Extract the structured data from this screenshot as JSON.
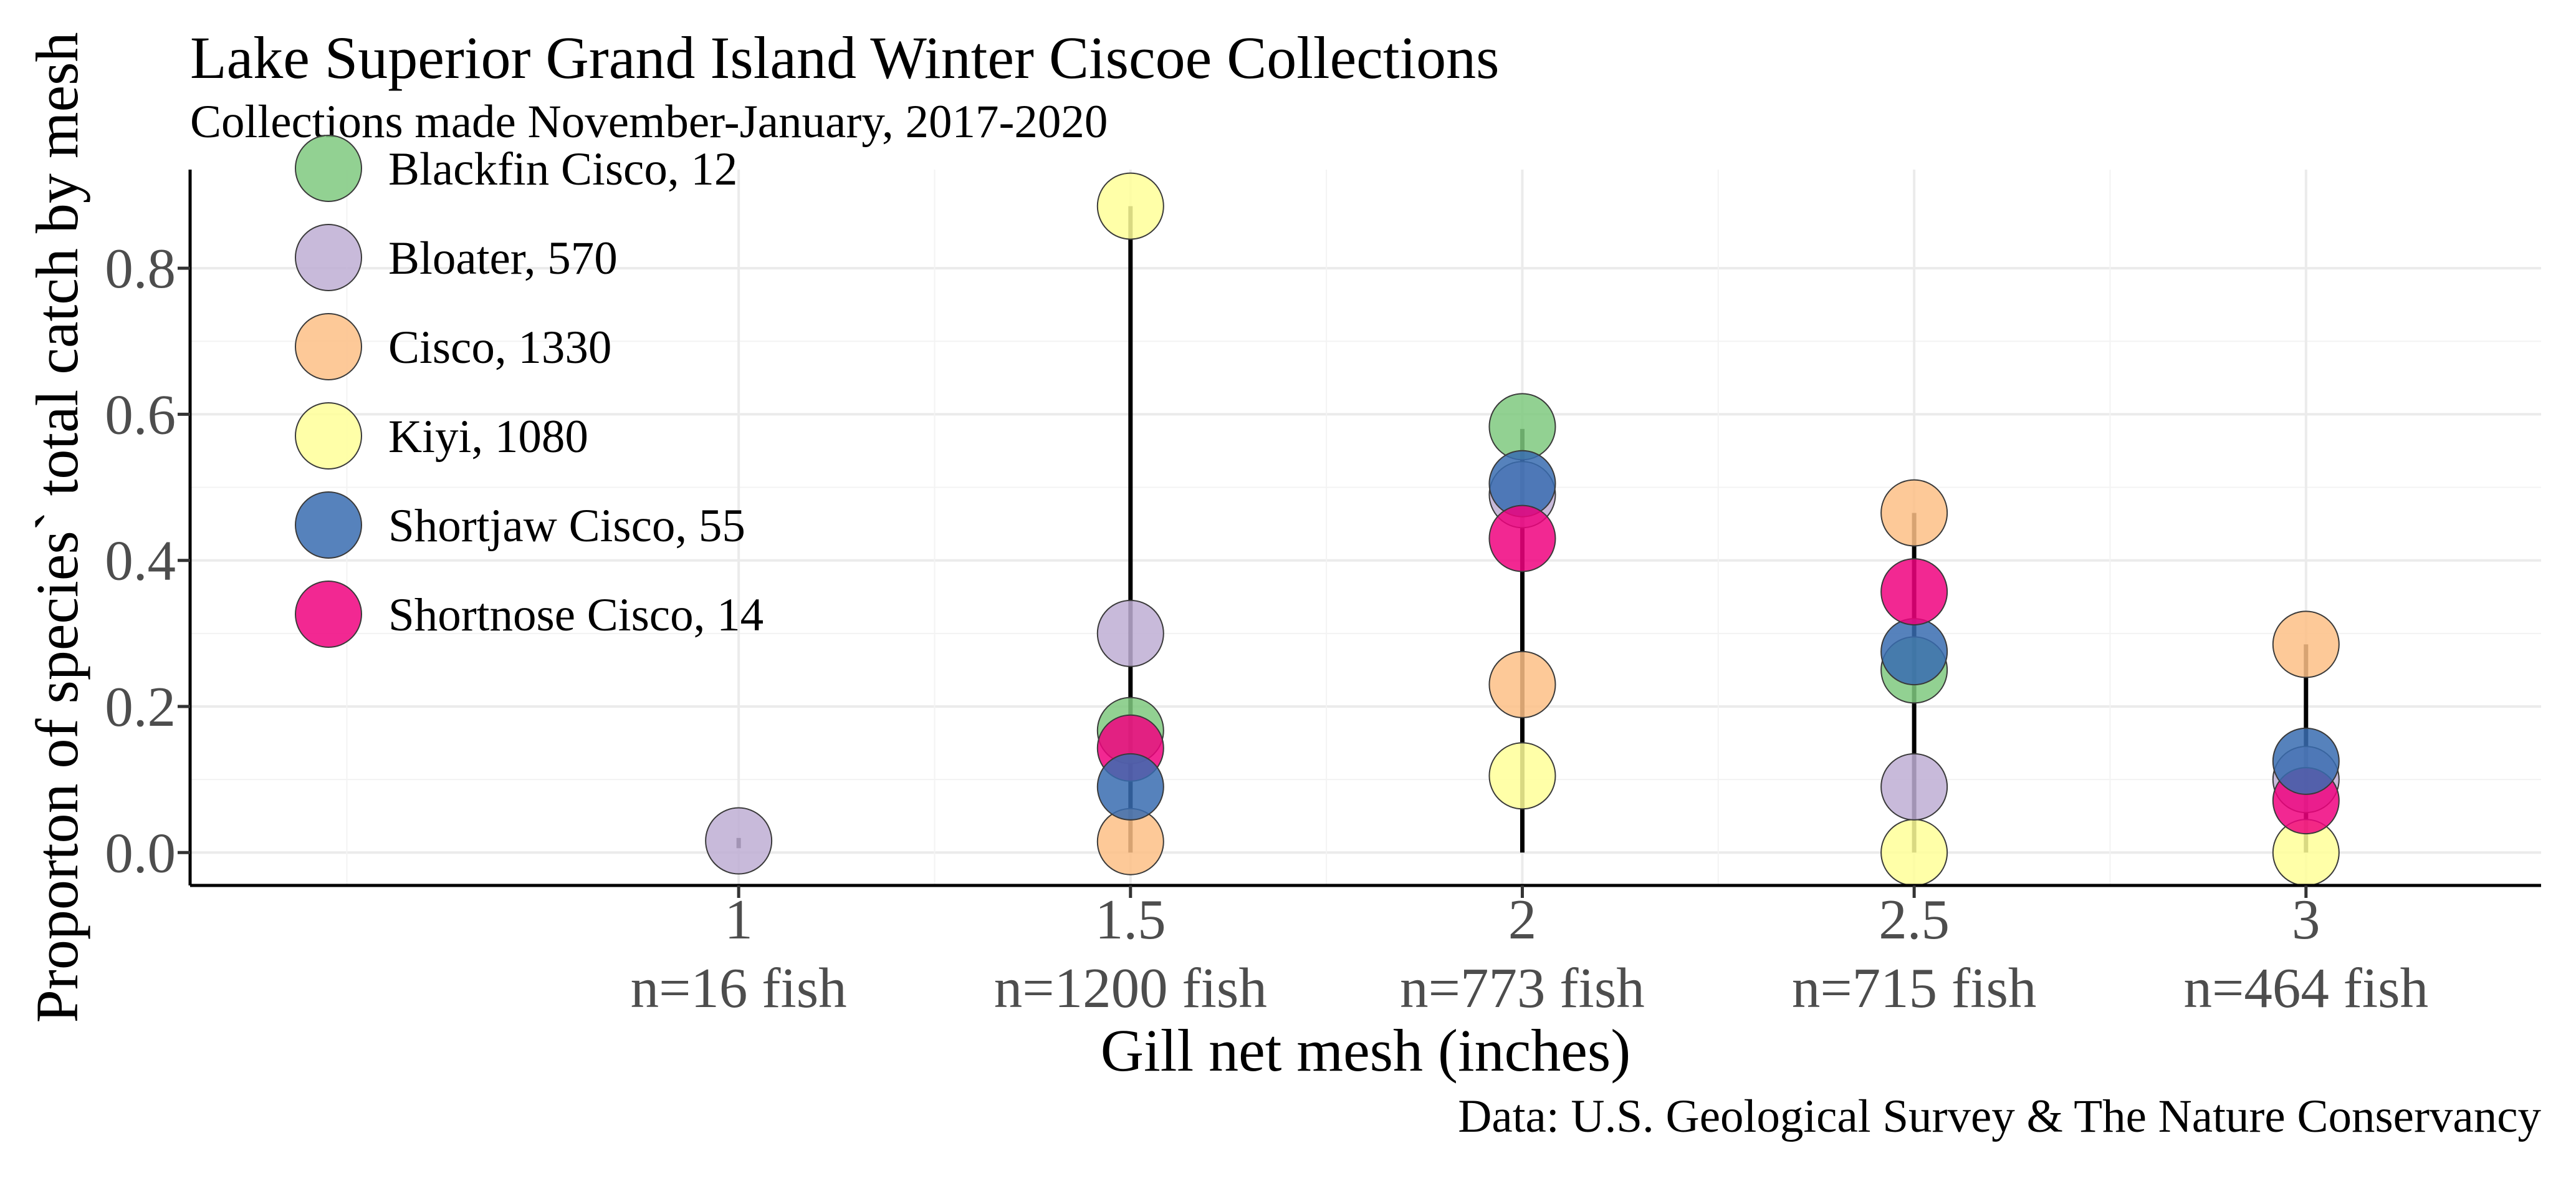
{
  "chart_data": {
    "type": "scatter",
    "title": "Lake Superior Grand Island Winter Ciscoe Collections",
    "subtitle": "Collections made November-January, 2017-2020",
    "caption": "Data: U.S. Geological Survey & The Nature Conservancy",
    "xlabel": "Gill net mesh (inches)",
    "ylabel": "Proporton of species` total catch by mesh",
    "x_ticks": [
      {
        "value": 1,
        "label": "1",
        "sublabel": "n=16 fish"
      },
      {
        "value": 1.5,
        "label": "1.5",
        "sublabel": "n=1200 fish"
      },
      {
        "value": 2,
        "label": "2",
        "sublabel": "n=773 fish"
      },
      {
        "value": 2.5,
        "label": "2.5",
        "sublabel": "n=715 fish"
      },
      {
        "value": 3,
        "label": "3",
        "sublabel": "n=464 fish"
      }
    ],
    "y_ticks": [
      {
        "value": 0.0,
        "label": "0.0"
      },
      {
        "value": 0.2,
        "label": "0.2"
      },
      {
        "value": 0.4,
        "label": "0.4"
      },
      {
        "value": 0.6,
        "label": "0.6"
      },
      {
        "value": 0.8,
        "label": "0.8"
      }
    ],
    "xlim": [
      0.3,
      3.3
    ],
    "ylim": [
      -0.045,
      0.935
    ],
    "grid": true,
    "legend_position": "top-left",
    "range_lines": [
      {
        "x": 1,
        "ymin": 0.006,
        "ymax": 0.02
      },
      {
        "x": 1.5,
        "ymin": 0.0,
        "ymax": 0.885
      },
      {
        "x": 2,
        "ymin": 0.0,
        "ymax": 0.58
      },
      {
        "x": 2.5,
        "ymin": 0.0,
        "ymax": 0.465
      },
      {
        "x": 3,
        "ymin": 0.0,
        "ymax": 0.285
      }
    ],
    "series": [
      {
        "name": "Blackfin Cisco, 12",
        "color": "#7fc97f",
        "points": [
          {
            "x": 2,
            "y": 0.583
          },
          {
            "x": 1.5,
            "y": 0.167
          },
          {
            "x": 2.5,
            "y": 0.25
          }
        ]
      },
      {
        "name": "Bloater, 570",
        "color": "#beaed4",
        "points": [
          {
            "x": 1,
            "y": 0.016
          },
          {
            "x": 1.5,
            "y": 0.3
          },
          {
            "x": 2,
            "y": 0.49
          },
          {
            "x": 2.5,
            "y": 0.09
          },
          {
            "x": 3,
            "y": 0.1
          }
        ]
      },
      {
        "name": "Cisco, 1330",
        "color": "#fdc086",
        "points": [
          {
            "x": 1.5,
            "y": 0.015
          },
          {
            "x": 2,
            "y": 0.23
          },
          {
            "x": 2.5,
            "y": 0.465
          },
          {
            "x": 3,
            "y": 0.285
          }
        ]
      },
      {
        "name": "Kiyi, 1080",
        "color": "#ffff99",
        "points": [
          {
            "x": 1.5,
            "y": 0.885
          },
          {
            "x": 2,
            "y": 0.105
          },
          {
            "x": 2.5,
            "y": 0.0
          },
          {
            "x": 3,
            "y": 0.0
          }
        ]
      },
      {
        "name": "Shortjaw Cisco, 55",
        "color": "#386cb0",
        "points": [
          {
            "x": 1.5,
            "y": 0.09
          },
          {
            "x": 2,
            "y": 0.505
          },
          {
            "x": 2.5,
            "y": 0.275
          },
          {
            "x": 3,
            "y": 0.125
          }
        ]
      },
      {
        "name": "Shortnose Cisco, 14",
        "color": "#f0027f",
        "points": [
          {
            "x": 1.5,
            "y": 0.143
          },
          {
            "x": 2,
            "y": 0.43
          },
          {
            "x": 2.5,
            "y": 0.357
          },
          {
            "x": 3,
            "y": 0.071
          }
        ]
      }
    ],
    "draw_order": [
      {
        "series": 2,
        "point": 0
      },
      {
        "series": 3,
        "point": 0
      },
      {
        "series": 1,
        "point": 0
      },
      {
        "series": 1,
        "point": 1
      },
      {
        "series": 0,
        "point": 1
      },
      {
        "series": 5,
        "point": 0
      },
      {
        "series": 4,
        "point": 0
      },
      {
        "series": 3,
        "point": 1
      },
      {
        "series": 2,
        "point": 1
      },
      {
        "series": 0,
        "point": 0
      },
      {
        "series": 1,
        "point": 2
      },
      {
        "series": 4,
        "point": 1
      },
      {
        "series": 5,
        "point": 1
      },
      {
        "series": 3,
        "point": 2
      },
      {
        "series": 1,
        "point": 3
      },
      {
        "series": 0,
        "point": 2
      },
      {
        "series": 4,
        "point": 2
      },
      {
        "series": 5,
        "point": 2
      },
      {
        "series": 2,
        "point": 2
      },
      {
        "series": 3,
        "point": 3
      },
      {
        "series": 1,
        "point": 4
      },
      {
        "series": 5,
        "point": 3
      },
      {
        "series": 4,
        "point": 3
      },
      {
        "series": 2,
        "point": 3
      }
    ],
    "point_opacity": 0.85,
    "range_line_color": "#000000"
  }
}
